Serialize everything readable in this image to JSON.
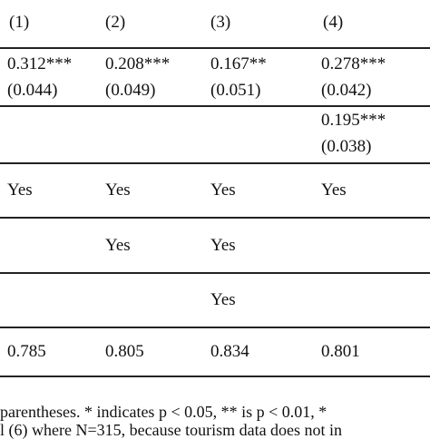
{
  "columns": [
    "(1)",
    "(2)",
    "(3)",
    "(4)"
  ],
  "row_a": {
    "coef": [
      "0.312***",
      "0.208***",
      "0.167**",
      "0.278***"
    ],
    "se": [
      "(0.044)",
      "(0.049)",
      "(0.051)",
      "(0.042)"
    ]
  },
  "row_b": {
    "coef4": "0.195***",
    "se4": "(0.038)"
  },
  "fe1": [
    "Yes",
    "Yes",
    "Yes",
    "Yes"
  ],
  "fe2": [
    "Yes",
    "Yes"
  ],
  "fe3": [
    "Yes"
  ],
  "r2": [
    "0.785",
    "0.805",
    "0.834",
    "0.801"
  ],
  "notes": [
    "parentheses.  * indicates p < 0.05, ** is p < 0.01, *",
    "l (6) where N=315, because tourism data does not in"
  ]
}
